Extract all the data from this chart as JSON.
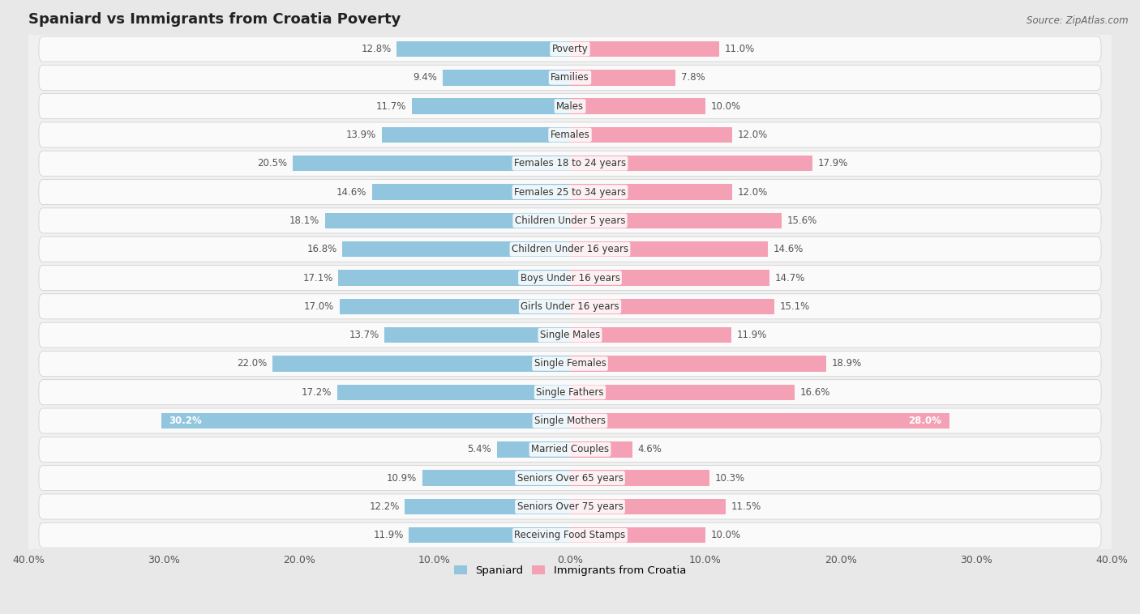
{
  "title": "Spaniard vs Immigrants from Croatia Poverty",
  "source": "Source: ZipAtlas.com",
  "categories": [
    "Poverty",
    "Families",
    "Males",
    "Females",
    "Females 18 to 24 years",
    "Females 25 to 34 years",
    "Children Under 5 years",
    "Children Under 16 years",
    "Boys Under 16 years",
    "Girls Under 16 years",
    "Single Males",
    "Single Females",
    "Single Fathers",
    "Single Mothers",
    "Married Couples",
    "Seniors Over 65 years",
    "Seniors Over 75 years",
    "Receiving Food Stamps"
  ],
  "spaniard": [
    12.8,
    9.4,
    11.7,
    13.9,
    20.5,
    14.6,
    18.1,
    16.8,
    17.1,
    17.0,
    13.7,
    22.0,
    17.2,
    30.2,
    5.4,
    10.9,
    12.2,
    11.9
  ],
  "croatia": [
    11.0,
    7.8,
    10.0,
    12.0,
    17.9,
    12.0,
    15.6,
    14.6,
    14.7,
    15.1,
    11.9,
    18.9,
    16.6,
    28.0,
    4.6,
    10.3,
    11.5,
    10.0
  ],
  "spaniard_color": "#92C5DE",
  "croatia_color": "#F4A0B5",
  "bar_height": 0.55,
  "xlim": 40.0,
  "background_color": "#e8e8e8",
  "row_color": "#f0f0f0",
  "row_inner_color": "#fafafa",
  "legend_labels": [
    "Spaniard",
    "Immigrants from Croatia"
  ],
  "title_fontsize": 13,
  "label_fontsize": 8.5,
  "value_fontsize": 8.5,
  "tick_fontsize": 9.0,
  "white_label_threshold": 25.0
}
